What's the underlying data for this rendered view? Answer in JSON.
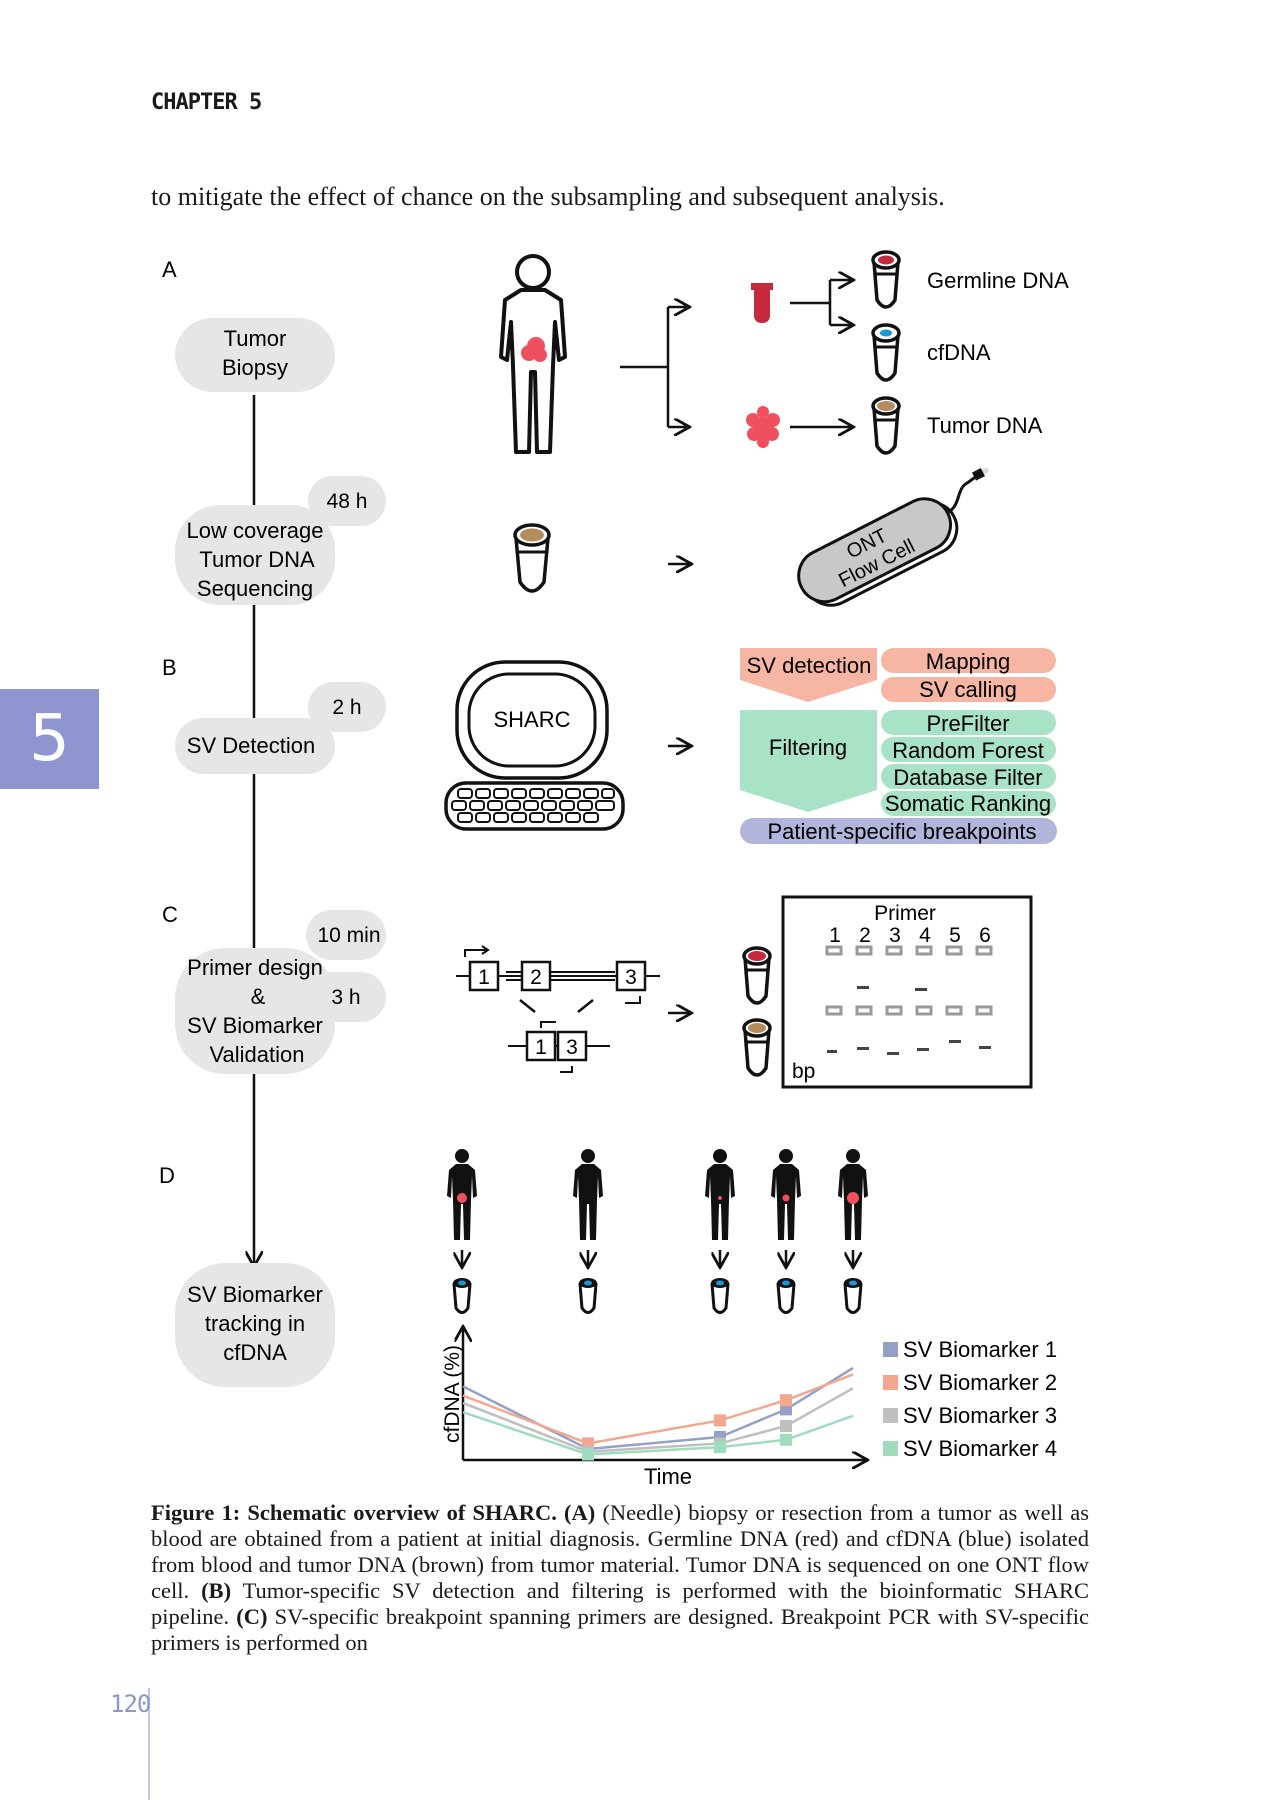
{
  "header": {
    "chapter": "CHAPTER 5"
  },
  "intro_text": "to mitigate the effect of chance on the subsampling and subsequent analysis.",
  "chapter_tab": "5",
  "figure": {
    "panels": {
      "a": "A",
      "b": "B",
      "c": "C",
      "d": "D"
    },
    "steps": {
      "biopsy_1": "Tumor",
      "biopsy_2": "Biopsy",
      "seq_1": "Low coverage",
      "seq_2": "Tumor DNA",
      "seq_3": "Sequencing",
      "svdet": "SV Detection",
      "primer_1": "Primer design",
      "primer_2": "&",
      "primer_3": "SV Biomarker",
      "primer_4": "Validation",
      "track_1": "SV Biomarker",
      "track_2": "tracking in",
      "track_3": "cfDNA"
    },
    "times": {
      "t1": "48 h",
      "t2": "2 h",
      "t3": "10 min",
      "t4": "3 h"
    },
    "dna": {
      "germline": "Germline DNA",
      "cfdna": "cfDNA",
      "tumor": "Tumor DNA"
    },
    "flowcell": {
      "line1": "ONT",
      "line2": "Flow Cell"
    },
    "sharc": "SHARC",
    "pipeline": {
      "sv_detection": "SV detection",
      "mapping": "Mapping",
      "sv_calling": "SV calling",
      "filtering": "Filtering",
      "prefilter": "PreFilter",
      "random_forest": "Random Forest",
      "database_filter": "Database Filter",
      "somatic_ranking": "Somatic Ranking",
      "breakpoints": "Patient-specific breakpoints"
    },
    "exons": {
      "e1": "1",
      "e2": "2",
      "e3": "3",
      "f1": "1",
      "f3": "3"
    },
    "gel": {
      "title": "Primer",
      "lanes": [
        "1",
        "2",
        "3",
        "4",
        "5",
        "6"
      ],
      "bp": "bp"
    },
    "colors": {
      "red": "#c42a3c",
      "blue": "#1c97d4",
      "brown": "#b58c5e",
      "pink": "#f7b5a3",
      "mint": "#a9e3c7",
      "lavender": "#b2b5db",
      "tab": "#8e95cf"
    }
  },
  "chart_data": {
    "type": "line",
    "xlabel": "Time",
    "ylabel": "cfDNA (%)",
    "x": [
      0,
      1,
      2,
      3,
      4
    ],
    "series": [
      {
        "name": "SV Biomarker 1",
        "color": "#95a0c8",
        "values": [
          8.0,
          1.2,
          2.5,
          5.5,
          10.0
        ]
      },
      {
        "name": "SV Biomarker 2",
        "color": "#f4a78f",
        "values": [
          7.0,
          1.8,
          4.3,
          6.5,
          9.3
        ]
      },
      {
        "name": "SV Biomarker 3",
        "color": "#bfbfbf",
        "values": [
          6.2,
          0.9,
          1.8,
          3.7,
          7.8
        ]
      },
      {
        "name": "SV Biomarker 4",
        "color": "#9fdcbe",
        "values": [
          5.2,
          0.6,
          1.4,
          2.2,
          4.8
        ]
      }
    ]
  },
  "caption": {
    "label": "Figure 1: Schematic overview of SHARC.",
    "p1_a": "(A)",
    "p1": " (Needle) biopsy or resection from a tumor as well as blood are obtained from a patient at initial diagnosis. Germline DNA (red) and cfDNA (blue) isolated from blood and tumor DNA (brown) from tumor material. Tumor DNA is sequenced on one ONT flow cell. ",
    "p2_b": "(B)",
    "p2": " Tumor-specific SV detection and filtering is performed with the bioinformatic SHARC pipeline. ",
    "p3_c": "(C)",
    "p3": " SV-specific breakpoint spanning primers are designed. Breakpoint PCR with SV-specific primers is performed on"
  },
  "page_number": "120"
}
